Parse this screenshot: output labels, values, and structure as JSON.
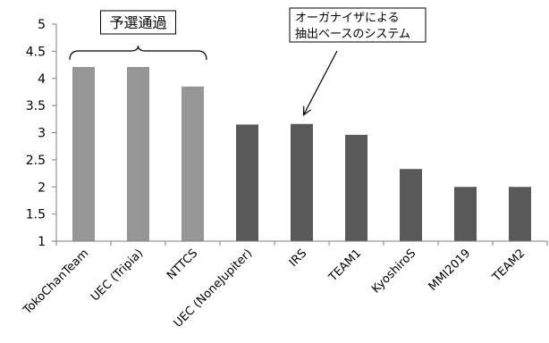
{
  "chart_data": {
    "type": "bar",
    "title": "",
    "xlabel": "",
    "ylabel": "",
    "ylim": [
      1,
      5
    ],
    "yticks": [
      1,
      1.5,
      2,
      2.5,
      3,
      3.5,
      4,
      4.5,
      5
    ],
    "grid": false,
    "legend": "none",
    "categories": [
      "TokoChanTeam",
      "UEC (Tripia)",
      "NTTCS",
      "UEC (NoneJupiter)",
      "IRS",
      "TEAM1",
      "KyoshiroS",
      "MMI2019",
      "TEAM2"
    ],
    "values": [
      4.21,
      4.21,
      3.85,
      3.15,
      3.16,
      2.96,
      2.33,
      2.0,
      2.0
    ],
    "bar_groups": [
      "qualified",
      "qualified",
      "qualified",
      "other",
      "other",
      "other",
      "other",
      "other",
      "other"
    ],
    "colors": {
      "qualified": "#969696",
      "other": "#595959",
      "axis": "#7f7f7f",
      "text": "#000000"
    },
    "annotations": {
      "qualified_label": "予選通過",
      "organizer_label_line1": "オーガナイザによる",
      "organizer_label_line2": "抽出ベースのシステム",
      "organizer_points_to": "IRS"
    }
  }
}
